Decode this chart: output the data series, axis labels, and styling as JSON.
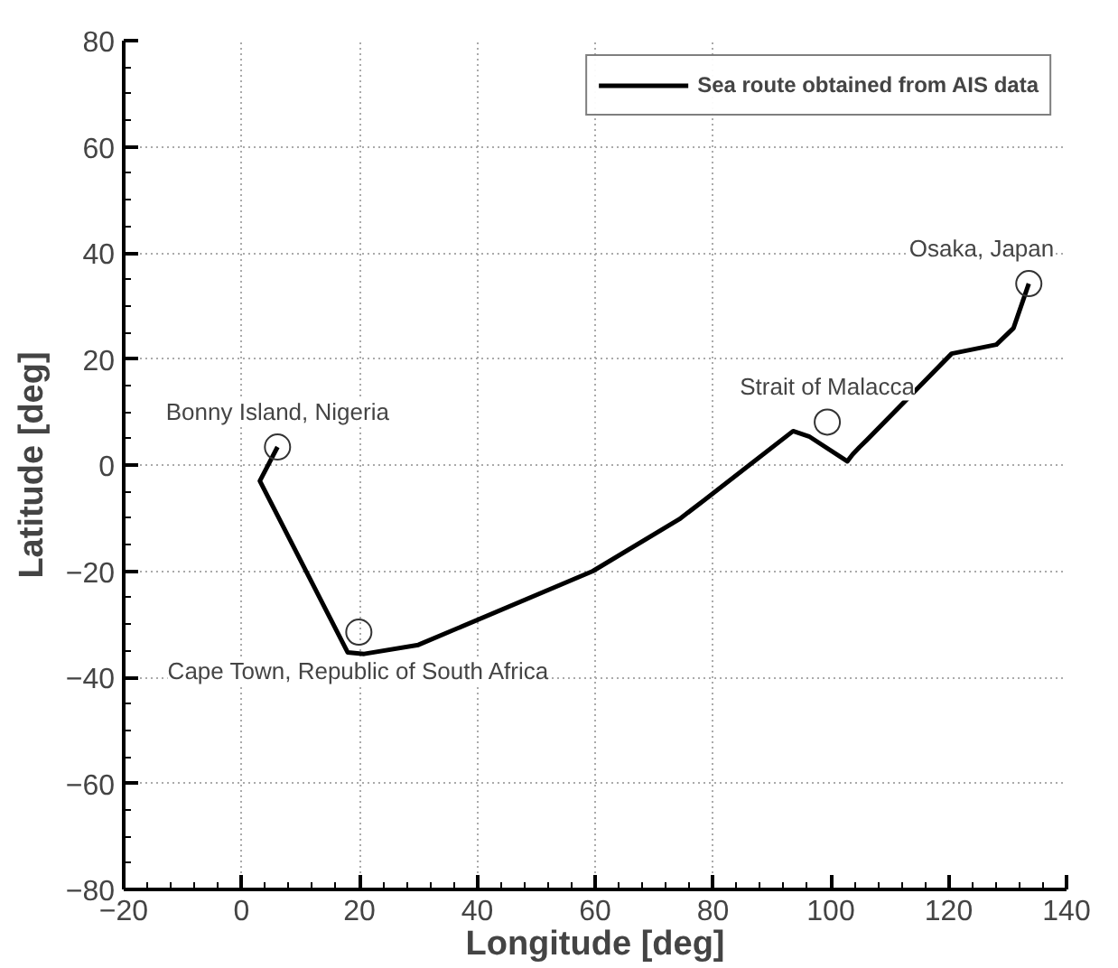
{
  "chart_data": {
    "type": "line",
    "xlabel": "Longitude [deg]",
    "ylabel": "Latitude [deg]",
    "xlim": [
      -20,
      140
    ],
    "ylim": [
      -80,
      80
    ],
    "xticks": [
      -20,
      0,
      20,
      40,
      60,
      80,
      100,
      120,
      140
    ],
    "yticks": [
      -80,
      -60,
      -40,
      -20,
      0,
      20,
      40,
      60,
      80
    ],
    "grid": true,
    "legend": "top right",
    "marker": "none",
    "line_style": "solid",
    "series": [
      {
        "name": "Sea route obtained from AIS data",
        "color": "#000000",
        "x": [
          6.1,
          3.1,
          18,
          20.8,
          30,
          59.6,
          74.3,
          78.3,
          93.6,
          96.3,
          102.8,
          103.7,
          104.9,
          106.1,
          120.5,
          128.1,
          131,
          133.6
        ],
        "values": [
          3.4,
          -3,
          -35.3,
          -35.6,
          -33.9,
          -20,
          -10.2,
          -6.8,
          6.4,
          5.4,
          0.7,
          2,
          3.4,
          4.7,
          21,
          22.7,
          25.8,
          34.2
        ]
      }
    ],
    "annotations": [
      {
        "text": "Bonny Island, Nigeria",
        "x": 6.1,
        "y": 3.4
      },
      {
        "text": "Cape Town, Republic of South Africa",
        "x": 19.9,
        "y": -31.5
      },
      {
        "text": "Strait of Malacca",
        "x": 99.4,
        "y": 8.1
      },
      {
        "text": "Osaka, Japan",
        "x": 133.6,
        "y": 34.2
      }
    ]
  }
}
